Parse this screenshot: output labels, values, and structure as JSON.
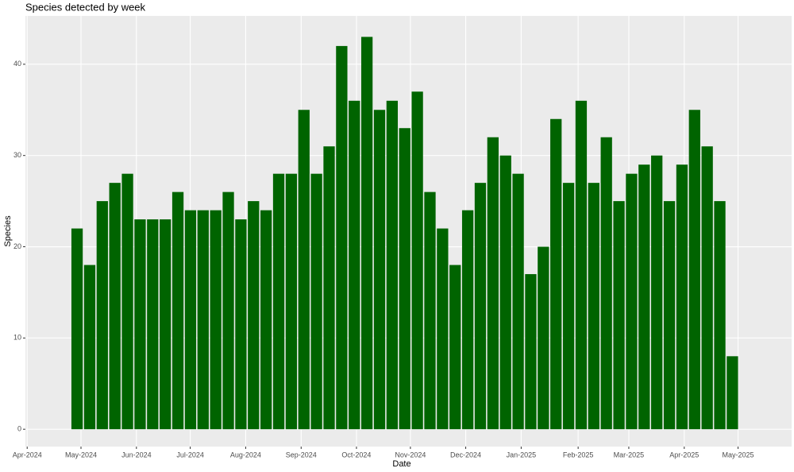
{
  "chart_data": {
    "type": "bar",
    "title": "Species detected by week",
    "x_label": "Date",
    "y_label": "Species",
    "categories": [
      null,
      null,
      null,
      null,
      null,
      null,
      null,
      null,
      null,
      null,
      null,
      null,
      null,
      null,
      null,
      null,
      null,
      null,
      null,
      null,
      null,
      null,
      null,
      null,
      null,
      null,
      null,
      null,
      null,
      null,
      null,
      null,
      null,
      null,
      null,
      null,
      null,
      null,
      null,
      null,
      null,
      null,
      null,
      null,
      null,
      null,
      null,
      null,
      null,
      null,
      null,
      null,
      null
    ],
    "values": [
      22,
      18,
      25,
      27,
      28,
      23,
      23,
      23,
      26,
      24,
      24,
      24,
      26,
      23,
      25,
      24,
      28,
      28,
      35,
      28,
      31,
      42,
      36,
      43,
      35,
      36,
      33,
      37,
      26,
      22,
      18,
      24,
      27,
      32,
      30,
      28,
      17,
      20,
      34,
      27,
      36,
      27,
      32,
      25,
      28,
      29,
      30,
      25,
      29,
      35,
      31,
      25,
      8
    ],
    "color": "#006400",
    "xlim": [
      -4.1,
      56.7
    ],
    "xticks": [
      {
        "value": -3.96,
        "label": "Apr-2024"
      },
      {
        "value": 0.31,
        "label": "May-2024"
      },
      {
        "value": 4.71,
        "label": "Jun-2024"
      },
      {
        "value": 8.98,
        "label": "Jul-2024"
      },
      {
        "value": 13.38,
        "label": "Aug-2024"
      },
      {
        "value": 17.78,
        "label": "Sep-2024"
      },
      {
        "value": 22.17,
        "label": "Oct-2024"
      },
      {
        "value": 26.45,
        "label": "Nov-2024"
      },
      {
        "value": 30.84,
        "label": "Dec-2024"
      },
      {
        "value": 35.24,
        "label": "Jan-2025"
      },
      {
        "value": 39.76,
        "label": "Feb-2025"
      },
      {
        "value": 43.78,
        "label": "Mar-2025"
      },
      {
        "value": 48.18,
        "label": "Apr-2025"
      },
      {
        "value": 52.45,
        "label": "May-2025"
      }
    ],
    "ylim": [
      -1.9,
      45.3
    ],
    "yticks": [
      0,
      10,
      20,
      30,
      40
    ],
    "grid": true
  }
}
